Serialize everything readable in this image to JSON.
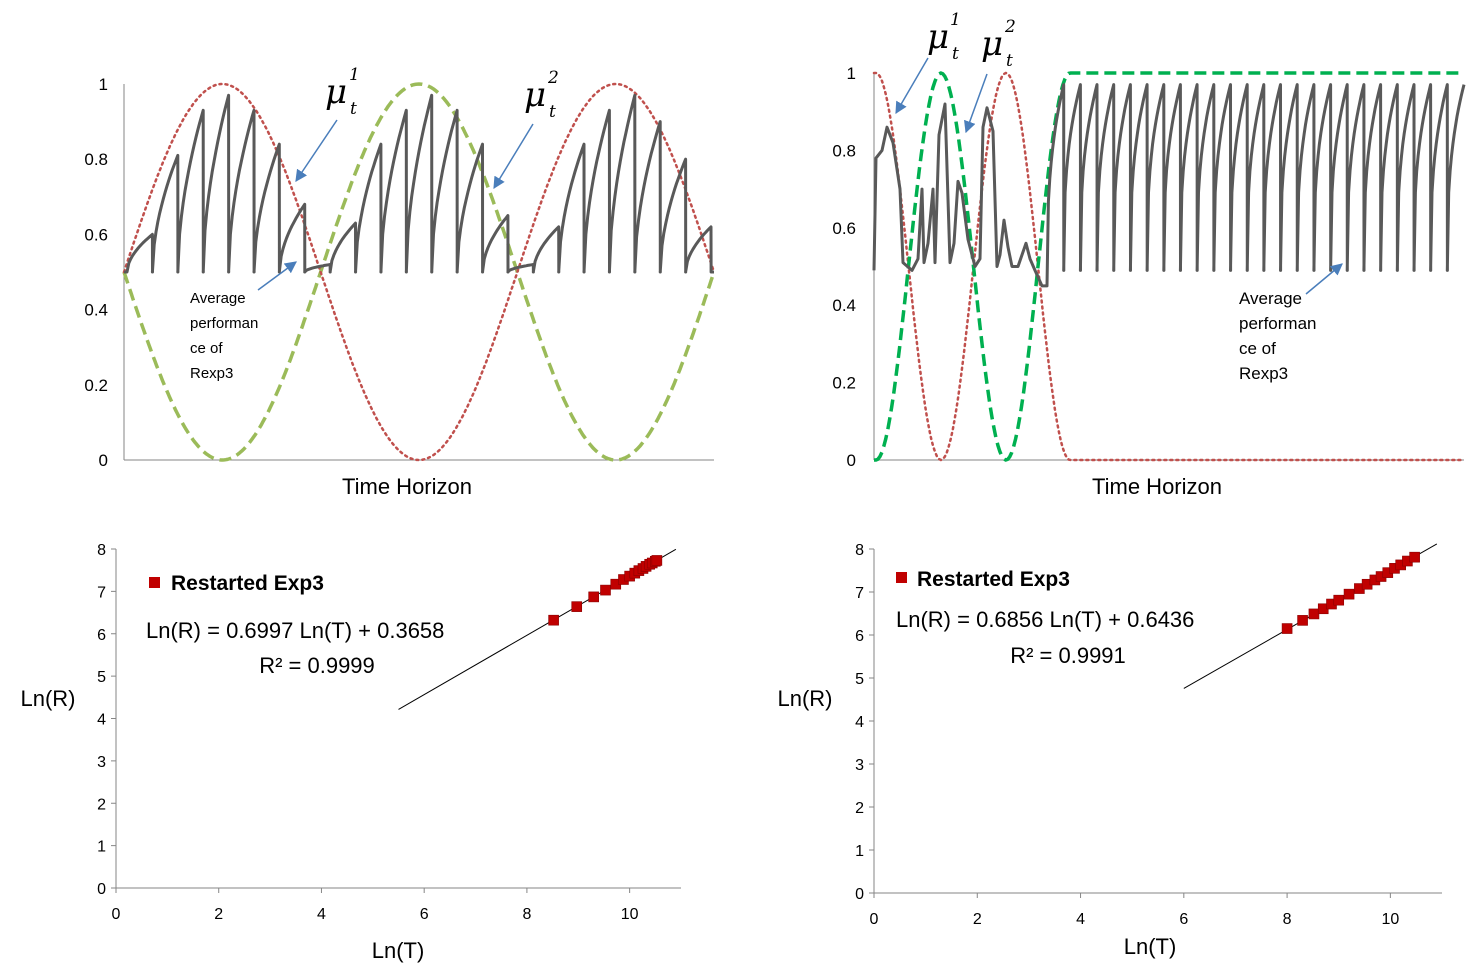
{
  "figure": {
    "panels": [
      "top-left",
      "top-right",
      "bottom-left",
      "bottom-right"
    ]
  },
  "chart_data": [
    {
      "id": "top-left",
      "type": "line",
      "xlabel": "Time Horizon",
      "ylabel": "",
      "ylim": [
        0,
        1
      ],
      "yticks": [
        "0",
        "0.2",
        "0.4",
        "0.6",
        "0.8",
        "1"
      ],
      "grid": false,
      "series": [
        {
          "role": "mu1",
          "style": "dotted",
          "color": "#c0504d",
          "shape": "sinusoid: 0.5 + 0.5*sin, peaks near 1 at phases 1/6, 5/6 of horizon, minimum 0 at phase 1/2",
          "values": [
            0.5,
            1,
            0.5,
            0,
            0.5,
            1,
            0.5
          ]
        },
        {
          "role": "mu2",
          "style": "dashed",
          "color": "#9bbb59",
          "shape": "complement of mu1",
          "values": [
            0.5,
            0,
            0.5,
            1,
            0.5,
            0,
            0.5
          ]
        },
        {
          "role": "average",
          "style": "solid",
          "color": "#595959",
          "shape": "sawtooth: resets to ~0.5 periodically, rises toward the better arm's mean",
          "peaks": [
            0.6,
            0.81,
            0.93,
            0.97,
            0.93,
            0.84,
            0.68,
            0.52,
            0.63,
            0.84,
            0.93,
            0.97,
            0.93,
            0.84,
            0.65,
            0.52,
            0.62,
            0.84,
            0.93,
            0.97,
            0.9,
            0.8,
            0.62
          ]
        }
      ],
      "annotations": {
        "mu1": {
          "main": "μ",
          "sub": "t",
          "sup": "1"
        },
        "mu2": {
          "main": "μ",
          "sub": "t",
          "sup": "2"
        },
        "average": [
          "Average",
          "performan",
          "ce of",
          "Rexp3"
        ]
      }
    },
    {
      "id": "top-right",
      "type": "line",
      "xlabel": "Time Horizon",
      "ylabel": "",
      "ylim": [
        0,
        1
      ],
      "yticks": [
        "0",
        "0.2",
        "0.4",
        "0.6",
        "0.8",
        "1"
      ],
      "grid": false,
      "series": [
        {
          "role": "mu1",
          "style": "dotted",
          "color": "#c0504d",
          "shape": "starts at 1, two bell oscillations, then drops to 0 and stays 0",
          "values": [
            1,
            0,
            1,
            0,
            0
          ]
        },
        {
          "role": "mu2",
          "style": "dashed",
          "color": "#00b050",
          "shape": "starts at 0, two bell oscillations, then rises to 1 and stays 1",
          "values": [
            0,
            1,
            0,
            1,
            1
          ]
        },
        {
          "role": "average",
          "style": "solid",
          "color": "#595959",
          "shape": "irregular in early phase, then regular sawtooth between ~0.49 and ~0.97",
          "low": 0.49,
          "high": 0.97
        }
      ],
      "annotations": {
        "mu1": {
          "main": "μ",
          "sub": "t",
          "sup": "1"
        },
        "mu2": {
          "main": "μ",
          "sub": "t",
          "sup": "2"
        },
        "average": [
          "Average",
          "performan",
          "ce of",
          "Rexp3"
        ]
      }
    },
    {
      "id": "bottom-left",
      "type": "scatter",
      "xlabel": "Ln(T)",
      "ylabel": "Ln(R)",
      "xlim": [
        0,
        11
      ],
      "ylim": [
        0,
        8
      ],
      "xticks": [
        0,
        2,
        4,
        6,
        8,
        10
      ],
      "yticks": [
        0,
        1,
        2,
        3,
        4,
        5,
        6,
        7,
        8
      ],
      "legend": {
        "label": "Restarted Exp3",
        "placement": "top-left"
      },
      "series": [
        {
          "name": "Restarted Exp3",
          "color": "#c00000",
          "x": [
            8.52,
            8.97,
            9.3,
            9.53,
            9.73,
            9.88,
            10.0,
            10.1,
            10.18,
            10.26,
            10.32,
            10.39,
            10.44,
            10.5,
            10.53
          ],
          "y": [
            6.32,
            6.64,
            6.87,
            7.03,
            7.17,
            7.28,
            7.36,
            7.43,
            7.49,
            7.54,
            7.59,
            7.64,
            7.67,
            7.71,
            7.73
          ]
        }
      ],
      "trendline": {
        "slope": 0.6997,
        "intercept": 0.3658,
        "x_range": [
          5.5,
          10.9
        ]
      },
      "equation": "Ln(R) = 0.6997 Ln(T) + 0.3658",
      "r2": "R² = 0.9999"
    },
    {
      "id": "bottom-right",
      "type": "scatter",
      "xlabel": "Ln(T)",
      "ylabel": "Ln(R)",
      "xlim": [
        0,
        11
      ],
      "ylim": [
        0,
        8
      ],
      "xticks": [
        0,
        2,
        4,
        6,
        8,
        10
      ],
      "yticks": [
        0,
        1,
        2,
        3,
        4,
        5,
        6,
        7,
        8
      ],
      "legend": {
        "label": "Restarted Exp3",
        "placement": "top-left"
      },
      "series": [
        {
          "name": "Restarted Exp3",
          "color": "#c00000",
          "x": [
            8.0,
            8.3,
            8.52,
            8.7,
            8.86,
            9.0,
            9.2,
            9.4,
            9.55,
            9.7,
            9.82,
            9.95,
            10.08,
            10.2,
            10.33,
            10.47
          ],
          "y": [
            6.15,
            6.34,
            6.49,
            6.61,
            6.72,
            6.81,
            6.95,
            7.08,
            7.18,
            7.28,
            7.36,
            7.45,
            7.55,
            7.63,
            7.72,
            7.81
          ]
        }
      ],
      "trendline": {
        "slope": 0.6856,
        "intercept": 0.6436,
        "x_range": [
          6.0,
          10.9
        ]
      },
      "equation": "Ln(R) = 0.6856 Ln(T) + 0.6436",
      "r2": "R² = 0.9991"
    }
  ]
}
